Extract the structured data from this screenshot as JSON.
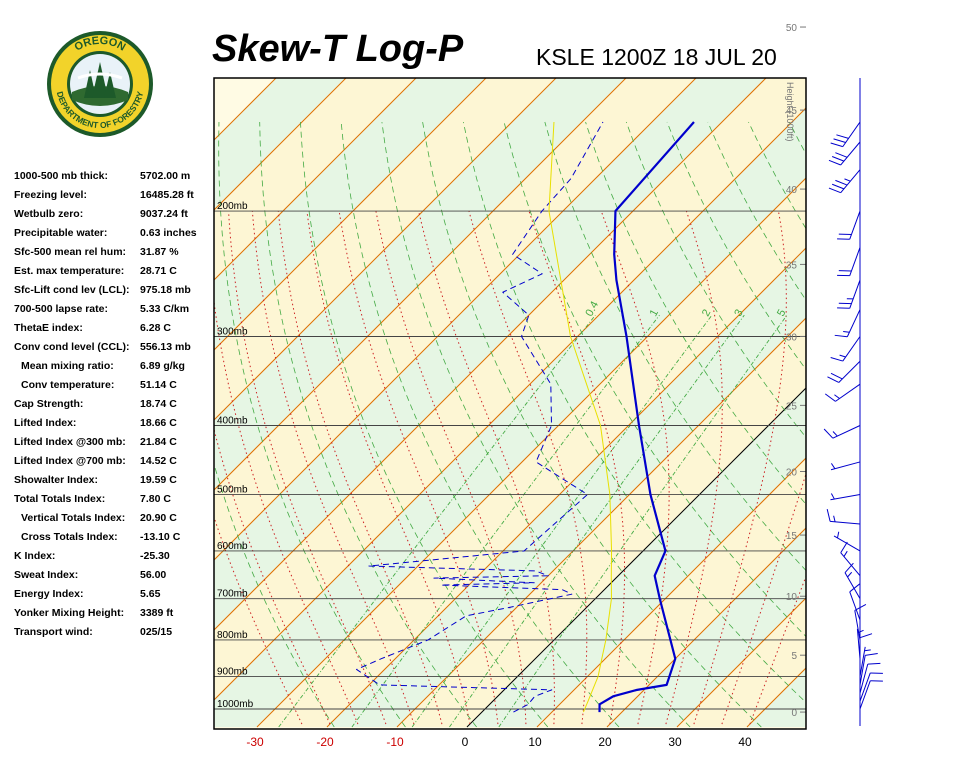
{
  "header": {
    "title": "Skew-T Log-P",
    "station": "KSLE 1200Z 18 JUL 20"
  },
  "logo": {
    "top_text": "OREGON",
    "bottom_text": "DEPARTMENT OF FORESTRY"
  },
  "indices": [
    {
      "label": "1000-500 mb thick:",
      "value": "5702.00 m",
      "sub": false
    },
    {
      "label": "Freezing level:",
      "value": "16485.28 ft",
      "sub": false
    },
    {
      "label": "Wetbulb zero:",
      "value": "9037.24 ft",
      "sub": false
    },
    {
      "label": "Precipitable water:",
      "value": "0.63 inches",
      "sub": false
    },
    {
      "label": "Sfc-500 mean rel hum:",
      "value": "31.87 %",
      "sub": false
    },
    {
      "label": "Est. max temperature:",
      "value": "28.71 C",
      "sub": false
    },
    {
      "label": "Sfc-Lift cond lev (LCL):",
      "value": "975.18 mb",
      "sub": false
    },
    {
      "label": "700-500 lapse rate:",
      "value": "5.33 C/km",
      "sub": false
    },
    {
      "label": "ThetaE index:",
      "value": "6.28 C",
      "sub": false
    },
    {
      "label": "Conv cond level (CCL):",
      "value": "556.13 mb",
      "sub": false
    },
    {
      "label": "Mean mixing ratio:",
      "value": "6.89 g/kg",
      "sub": true
    },
    {
      "label": "Conv temperature:",
      "value": "51.14 C",
      "sub": true
    },
    {
      "label": "Cap Strength:",
      "value": "18.74 C",
      "sub": false
    },
    {
      "label": "Lifted Index:",
      "value": "18.66 C",
      "sub": false
    },
    {
      "label": "Lifted Index @300 mb:",
      "value": "21.84 C",
      "sub": false
    },
    {
      "label": "Lifted Index @700 mb:",
      "value": "14.52 C",
      "sub": false
    },
    {
      "label": "Showalter Index:",
      "value": "19.59 C",
      "sub": false
    },
    {
      "label": "Total Totals Index:",
      "value": "7.80 C",
      "sub": false
    },
    {
      "label": "Vertical Totals Index:",
      "value": "20.90 C",
      "sub": true
    },
    {
      "label": "Cross Totals Index:",
      "value": "-13.10 C",
      "sub": true
    },
    {
      "label": "K Index:",
      "value": "-25.30",
      "sub": false
    },
    {
      "label": "Sweat Index:",
      "value": "56.00",
      "sub": false
    },
    {
      "label": "Energy Index:",
      "value": "5.65",
      "sub": false
    },
    {
      "label": "Yonker Mixing Height:",
      "value": "3389 ft",
      "sub": false
    },
    {
      "label": "Transport wind:",
      "value": "025/15",
      "sub": false
    }
  ],
  "chart_data": {
    "type": "line",
    "title": "Skew-T Log-P",
    "subtitle": "KSLE 1200Z 18 JUL 20",
    "x_ticks": [
      "-30",
      "-20",
      "-10",
      "0",
      "10",
      "20",
      "30",
      "40"
    ],
    "x_tick_values": [
      -30,
      -20,
      -10,
      0,
      10,
      20,
      30,
      40
    ],
    "pressure_labels": [
      "200mb",
      "300mb",
      "400mb",
      "500mb",
      "600mb",
      "700mb",
      "800mb",
      "900mb",
      "1000mb"
    ],
    "pressure_values": [
      200,
      300,
      400,
      500,
      600,
      700,
      800,
      900,
      1000
    ],
    "height_axis_label": "Height (1000ft)",
    "height_ticks": [
      "0",
      "5",
      "10",
      "15",
      "20",
      "25",
      "30",
      "35",
      "40",
      "45",
      "50"
    ],
    "height_values": [
      0,
      5,
      10,
      15,
      20,
      25,
      30,
      35,
      40,
      45,
      50
    ],
    "mixing_ratio_labels": [
      "0.4",
      "1",
      "2",
      "3",
      "5"
    ],
    "colors": {
      "temperature": "#0000cc",
      "dewpoint": "#0000cc",
      "parcel": "#e8e000",
      "isotherm": "#e07000",
      "isobar": "#444444",
      "dry_adiabat": "#44aa44",
      "moist_adiabat": "#cc2222",
      "mixing_ratio": "#44aa44",
      "zero_isotherm": "#000000",
      "x_tick_negative": "#cc0000",
      "x_tick_positive": "#000000",
      "wind_barb": "#0000cc"
    },
    "series": [
      {
        "name": "Temperature",
        "style": "solid",
        "points": [
          {
            "p": 1010,
            "t": 16.8
          },
          {
            "p": 985,
            "t": 15.7
          },
          {
            "p": 960,
            "t": 16.5
          },
          {
            "p": 940,
            "t": 19.0
          },
          {
            "p": 925,
            "t": 22.5
          },
          {
            "p": 850,
            "t": 20.0
          },
          {
            "p": 700,
            "t": 9.2
          },
          {
            "p": 650,
            "t": 5.2
          },
          {
            "p": 600,
            "t": 3.2
          },
          {
            "p": 500,
            "t": -7.0
          },
          {
            "p": 400,
            "t": -18.5
          },
          {
            "p": 300,
            "t": -33.0
          },
          {
            "p": 250,
            "t": -42.5
          },
          {
            "p": 230,
            "t": -46.5
          },
          {
            "p": 200,
            "t": -52.5
          },
          {
            "p": 150,
            "t": -54.0
          }
        ]
      },
      {
        "name": "Dewpoint",
        "style": "dashed",
        "points": [
          {
            "p": 1010,
            "t": 4.5
          },
          {
            "p": 985,
            "t": 5.5
          },
          {
            "p": 960,
            "t": 5.3
          },
          {
            "p": 940,
            "t": 6.8
          },
          {
            "p": 925,
            "t": -18.5
          },
          {
            "p": 880,
            "t": -24.0
          },
          {
            "p": 850,
            "t": -22.0
          },
          {
            "p": 800,
            "t": -18.0
          },
          {
            "p": 740,
            "t": -16.0
          },
          {
            "p": 720,
            "t": -11.0
          },
          {
            "p": 690,
            "t": -4.0
          },
          {
            "p": 680,
            "t": -6.0
          },
          {
            "p": 670,
            "t": -24.0
          },
          {
            "p": 665,
            "t": -11.0
          },
          {
            "p": 655,
            "t": -26.0
          },
          {
            "p": 650,
            "t": -10.0
          },
          {
            "p": 640,
            "t": -12.5
          },
          {
            "p": 630,
            "t": -37.0
          },
          {
            "p": 600,
            "t": -17.0
          },
          {
            "p": 500,
            "t": -16.0
          },
          {
            "p": 450,
            "t": -28.0
          },
          {
            "p": 400,
            "t": -31.0
          },
          {
            "p": 350,
            "t": -37.0
          },
          {
            "p": 300,
            "t": -48.0
          },
          {
            "p": 280,
            "t": -50.0
          },
          {
            "p": 260,
            "t": -57.0
          },
          {
            "p": 245,
            "t": -54.0
          },
          {
            "p": 230,
            "t": -61.0
          },
          {
            "p": 200,
            "t": -63.0
          },
          {
            "p": 180,
            "t": -63.5
          },
          {
            "p": 150,
            "t": -67.0
          }
        ]
      },
      {
        "name": "Parcel",
        "style": "thin",
        "points": [
          {
            "p": 1010,
            "t": 14.5
          },
          {
            "p": 975,
            "t": 13.6
          },
          {
            "p": 900,
            "t": 11.5
          },
          {
            "p": 850,
            "t": 9.5
          },
          {
            "p": 800,
            "t": 7.4
          },
          {
            "p": 700,
            "t": 2.3
          },
          {
            "p": 650,
            "t": -1.0
          },
          {
            "p": 600,
            "t": -4.5
          },
          {
            "p": 500,
            "t": -12.8
          },
          {
            "p": 400,
            "t": -24.0
          },
          {
            "p": 300,
            "t": -41.0
          },
          {
            "p": 200,
            "t": -62.0
          },
          {
            "p": 150,
            "t": -74.0
          }
        ]
      }
    ],
    "wind_barbs": [
      {
        "p": 1000,
        "dir": 20,
        "speed": 10
      },
      {
        "p": 975,
        "dir": 20,
        "speed": 10
      },
      {
        "p": 950,
        "dir": 15,
        "speed": 10
      },
      {
        "p": 925,
        "dir": 10,
        "speed": 10
      },
      {
        "p": 900,
        "dir": 10,
        "speed": 5
      },
      {
        "p": 875,
        "dir": 360,
        "speed": 10
      },
      {
        "p": 850,
        "dir": 355,
        "speed": 5
      },
      {
        "p": 800,
        "dir": 350,
        "speed": 10
      },
      {
        "p": 750,
        "dir": 340,
        "speed": 10
      },
      {
        "p": 700,
        "dir": 330,
        "speed": 15
      },
      {
        "p": 650,
        "dir": 320,
        "speed": 15
      },
      {
        "p": 600,
        "dir": 300,
        "speed": 5
      },
      {
        "p": 550,
        "dir": 275,
        "speed": 15
      },
      {
        "p": 500,
        "dir": 260,
        "speed": 5
      },
      {
        "p": 450,
        "dir": 255,
        "speed": 5
      },
      {
        "p": 400,
        "dir": 245,
        "speed": 15
      },
      {
        "p": 350,
        "dir": 235,
        "speed": 15
      },
      {
        "p": 325,
        "dir": 225,
        "speed": 20
      },
      {
        "p": 300,
        "dir": 215,
        "speed": 15
      },
      {
        "p": 275,
        "dir": 205,
        "speed": 15
      },
      {
        "p": 250,
        "dir": 200,
        "speed": 25
      },
      {
        "p": 225,
        "dir": 200,
        "speed": 20
      },
      {
        "p": 200,
        "dir": 200,
        "speed": 20
      },
      {
        "p": 175,
        "dir": 220,
        "speed": 35
      },
      {
        "p": 160,
        "dir": 220,
        "speed": 30
      },
      {
        "p": 150,
        "dir": 215,
        "speed": 30
      }
    ]
  }
}
